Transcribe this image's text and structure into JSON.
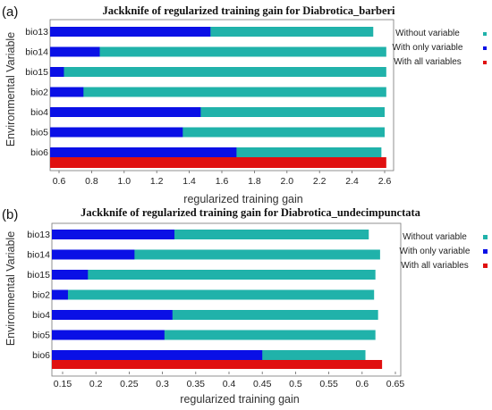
{
  "colors": {
    "without": "#20b2aa",
    "with_only": "#0a10e6",
    "with_all": "#e01010"
  },
  "chart_data": [
    {
      "type": "bar",
      "panel_label": "(a)",
      "title": "Jackknife of regularized training gain for Diabrotica_barberi",
      "xlabel": "regularized training gain",
      "ylabel": "Environmental Variable",
      "xlim": [
        0.55,
        2.65
      ],
      "xticks": [
        "0.6",
        "0.8",
        "1.0",
        "1.2",
        "1.4",
        "1.6",
        "1.8",
        "2.0",
        "2.2",
        "2.4",
        "2.6"
      ],
      "categories": [
        "bio13",
        "bio14",
        "bio15",
        "bio2",
        "bio4",
        "bio5",
        "bio6"
      ],
      "series": [
        {
          "name": "Without variable",
          "values": [
            2.53,
            2.61,
            2.61,
            2.61,
            2.6,
            2.6,
            2.58
          ]
        },
        {
          "name": "With only variable",
          "values": [
            1.53,
            0.85,
            0.63,
            0.75,
            1.47,
            1.36,
            1.69
          ]
        }
      ],
      "all_variables": {
        "name": "With all variables",
        "value": 2.61
      },
      "legend": [
        "Without variable",
        "With only variable",
        "With all variables"
      ],
      "legend_position": "right",
      "grid": false
    },
    {
      "type": "bar",
      "panel_label": "(b)",
      "title": "Jackknife of regularized training gain for Diabrotica_undecimpunctata",
      "xlabel": "regularized training gain",
      "ylabel": "Environmental Variable",
      "xlim": [
        0.125,
        0.65
      ],
      "xticks": [
        "0.15",
        "0.2",
        "0.25",
        "0.3",
        "0.35",
        "0.4",
        "0.45",
        "0.5",
        "0.55",
        "0.6",
        "0.65"
      ],
      "categories": [
        "bio13",
        "bio14",
        "bio15",
        "bio2",
        "bio4",
        "bio5",
        "bio6"
      ],
      "series": [
        {
          "name": "Without variable",
          "values": [
            0.61,
            0.627,
            0.62,
            0.618,
            0.624,
            0.62,
            0.605
          ]
        },
        {
          "name": "With only variable",
          "values": [
            0.318,
            0.258,
            0.188,
            0.158,
            0.315,
            0.303,
            0.45
          ]
        }
      ],
      "all_variables": {
        "name": "With all variables",
        "value": 0.63
      },
      "legend": [
        "Without variable",
        "With only variable",
        "With all variables"
      ],
      "legend_position": "right",
      "grid": false
    }
  ]
}
